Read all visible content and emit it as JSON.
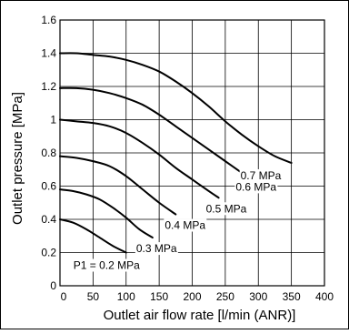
{
  "chart_data": {
    "type": "line",
    "title": "",
    "xlabel": "Outlet air flow rate [l/min (ANR)]",
    "ylabel": "Outlet pressure [MPa]",
    "xlim": [
      0,
      400
    ],
    "ylim": [
      0,
      1.6
    ],
    "x_ticks": [
      "0",
      "50",
      "100",
      "150",
      "200",
      "250",
      "300",
      "350",
      "400"
    ],
    "y_ticks": [
      "0",
      "0.2",
      "0.4",
      "0.6",
      "0.8",
      "1",
      "1.2",
      "1.4",
      "1.6"
    ],
    "grid": true,
    "legend": "none",
    "colors": {
      "curve": "#000000",
      "grid": "#000000",
      "background": "#ffffff"
    },
    "series": [
      {
        "name": "P1 = 0.2 MPa",
        "label_text": "P1 = 0.2 MPa",
        "x": [
          0,
          20,
          40,
          60,
          80,
          100
        ],
        "y": [
          0.4,
          0.38,
          0.34,
          0.29,
          0.24,
          0.2
        ]
      },
      {
        "name": "0.3 MPa",
        "label_text": "0.3 MPa",
        "x": [
          0,
          20,
          40,
          60,
          80,
          100,
          120,
          140
        ],
        "y": [
          0.58,
          0.57,
          0.55,
          0.52,
          0.47,
          0.41,
          0.34,
          0.29
        ]
      },
      {
        "name": "0.4 MPa",
        "label_text": "0.4 MPa",
        "x": [
          0,
          25,
          50,
          75,
          100,
          125,
          150,
          175
        ],
        "y": [
          0.78,
          0.77,
          0.75,
          0.72,
          0.66,
          0.58,
          0.5,
          0.43
        ]
      },
      {
        "name": "0.5 MPa",
        "label_text": "0.5 MPa",
        "x": [
          0,
          25,
          50,
          75,
          100,
          125,
          150,
          175,
          200,
          225,
          240
        ],
        "y": [
          1.0,
          0.99,
          0.98,
          0.96,
          0.92,
          0.86,
          0.79,
          0.71,
          0.64,
          0.57,
          0.53
        ]
      },
      {
        "name": "0.6 MPa",
        "label_text": "0.6 MPa",
        "x": [
          0,
          25,
          50,
          75,
          100,
          125,
          150,
          175,
          200,
          225,
          250,
          275,
          285
        ],
        "y": [
          1.19,
          1.19,
          1.18,
          1.16,
          1.13,
          1.09,
          1.03,
          0.96,
          0.89,
          0.82,
          0.75,
          0.68,
          0.65
        ]
      },
      {
        "name": "0.7 MPa",
        "label_text": "0.7 MPa",
        "x": [
          0,
          25,
          50,
          75,
          100,
          125,
          150,
          175,
          200,
          225,
          250,
          275,
          300,
          325,
          350
        ],
        "y": [
          1.4,
          1.4,
          1.39,
          1.38,
          1.36,
          1.33,
          1.29,
          1.23,
          1.16,
          1.08,
          0.99,
          0.91,
          0.84,
          0.78,
          0.74
        ]
      }
    ]
  }
}
